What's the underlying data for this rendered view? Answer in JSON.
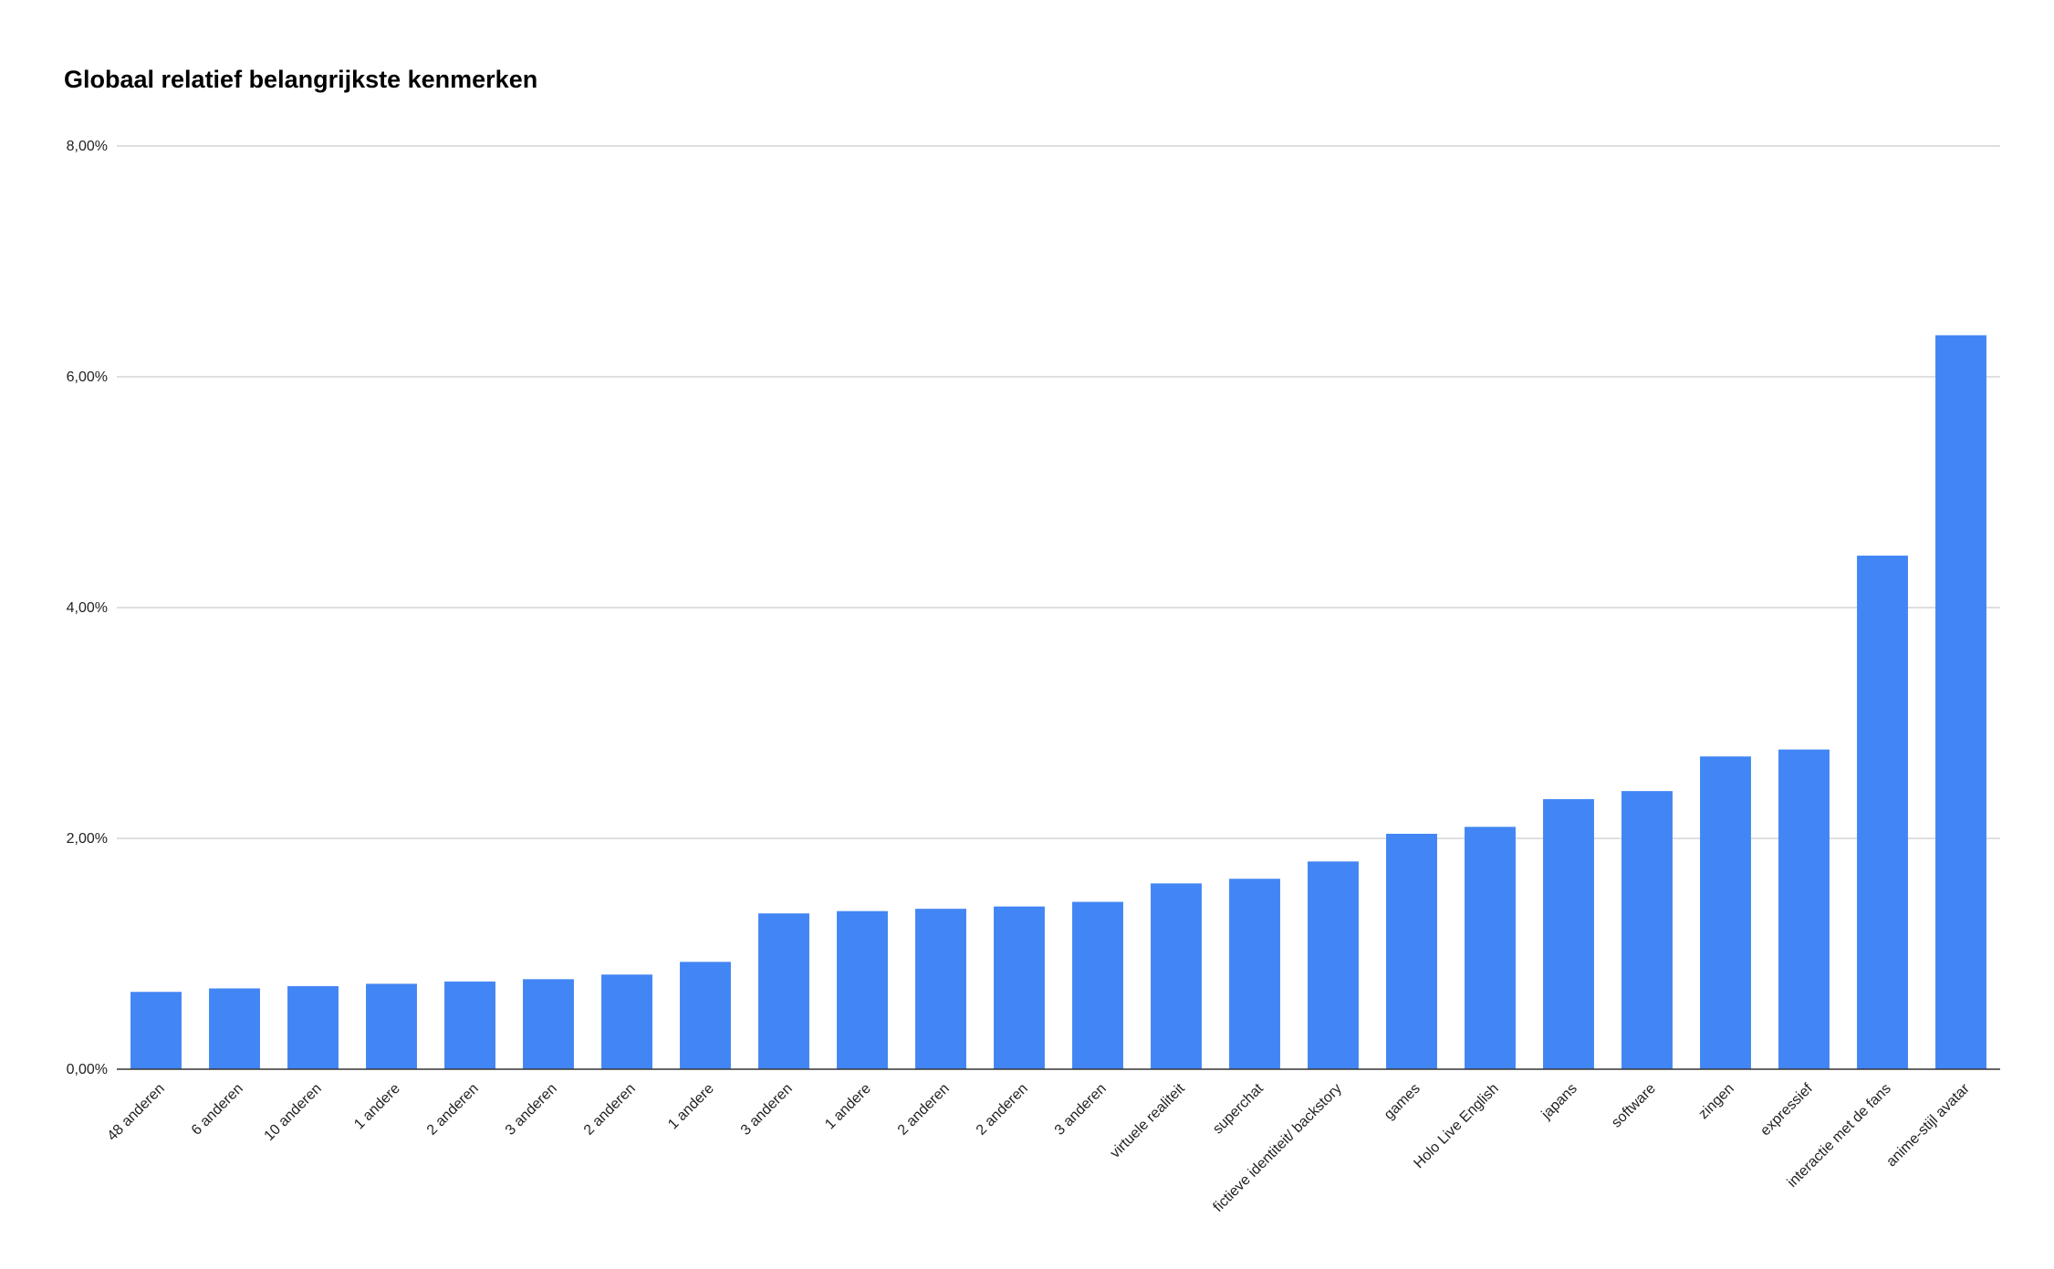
{
  "chart_data": {
    "type": "bar",
    "title": "Globaal relatief belangrijkste kenmerken",
    "xlabel": "",
    "ylabel": "",
    "ylim": [
      0,
      8
    ],
    "y_ticks": [
      0,
      2,
      4,
      6,
      8
    ],
    "y_tick_labels": [
      "0,00%",
      "2,00%",
      "4,00%",
      "6,00%",
      "8,00%"
    ],
    "grid": true,
    "legend": "none",
    "bar_color": "#4285f4",
    "categories": [
      "48 anderen",
      "6 anderen",
      "10 anderen",
      "1 andere",
      "2 anderen",
      "3 anderen",
      "2 anderen",
      "1 andere",
      "3 anderen",
      "1 andere",
      "2 anderen",
      "2 anderen",
      "3 anderen",
      "virtuele realiteit",
      "superchat",
      "fictieve identiteit/ backstory",
      "games",
      "Holo Live English",
      "japans",
      "software",
      "zingen",
      "expressief",
      "interactie met de fans",
      "anime-stijl avatar"
    ],
    "values": [
      0.67,
      0.7,
      0.72,
      0.74,
      0.76,
      0.78,
      0.82,
      0.93,
      1.35,
      1.37,
      1.39,
      1.41,
      1.45,
      1.61,
      1.65,
      1.8,
      2.04,
      2.1,
      2.34,
      2.41,
      2.71,
      2.77,
      4.45,
      6.36
    ]
  }
}
